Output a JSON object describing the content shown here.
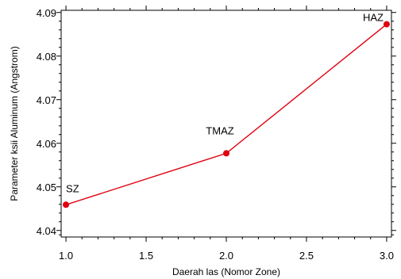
{
  "chart_data": {
    "type": "line",
    "title": "",
    "xlabel": "Daerah las (Nomor Zone)",
    "ylabel": "Parameter ksii Aluminum  (Angstrom)",
    "xlim": [
      0.97,
      3.03
    ],
    "ylim": [
      4.0385,
      4.0905
    ],
    "x_ticks": [
      1.0,
      1.5,
      2.0,
      2.5,
      3.0
    ],
    "x_tick_labels": [
      "1.0",
      "1.5",
      "2.0",
      "2.5",
      "3.0"
    ],
    "y_ticks": [
      4.04,
      4.05,
      4.06,
      4.07,
      4.08,
      4.09
    ],
    "y_tick_labels": [
      "4.04",
      "4.05",
      "4.06",
      "4.07",
      "4.08",
      "4.09"
    ],
    "grid": false,
    "legend": "none",
    "series": [
      {
        "color": "#e0000f",
        "x": [
          1.0,
          2.0,
          3.0
        ],
        "y": [
          4.0459,
          4.0577,
          4.0873
        ],
        "point_labels": [
          "SZ",
          "TMAZ",
          "HAZ"
        ]
      }
    ]
  }
}
